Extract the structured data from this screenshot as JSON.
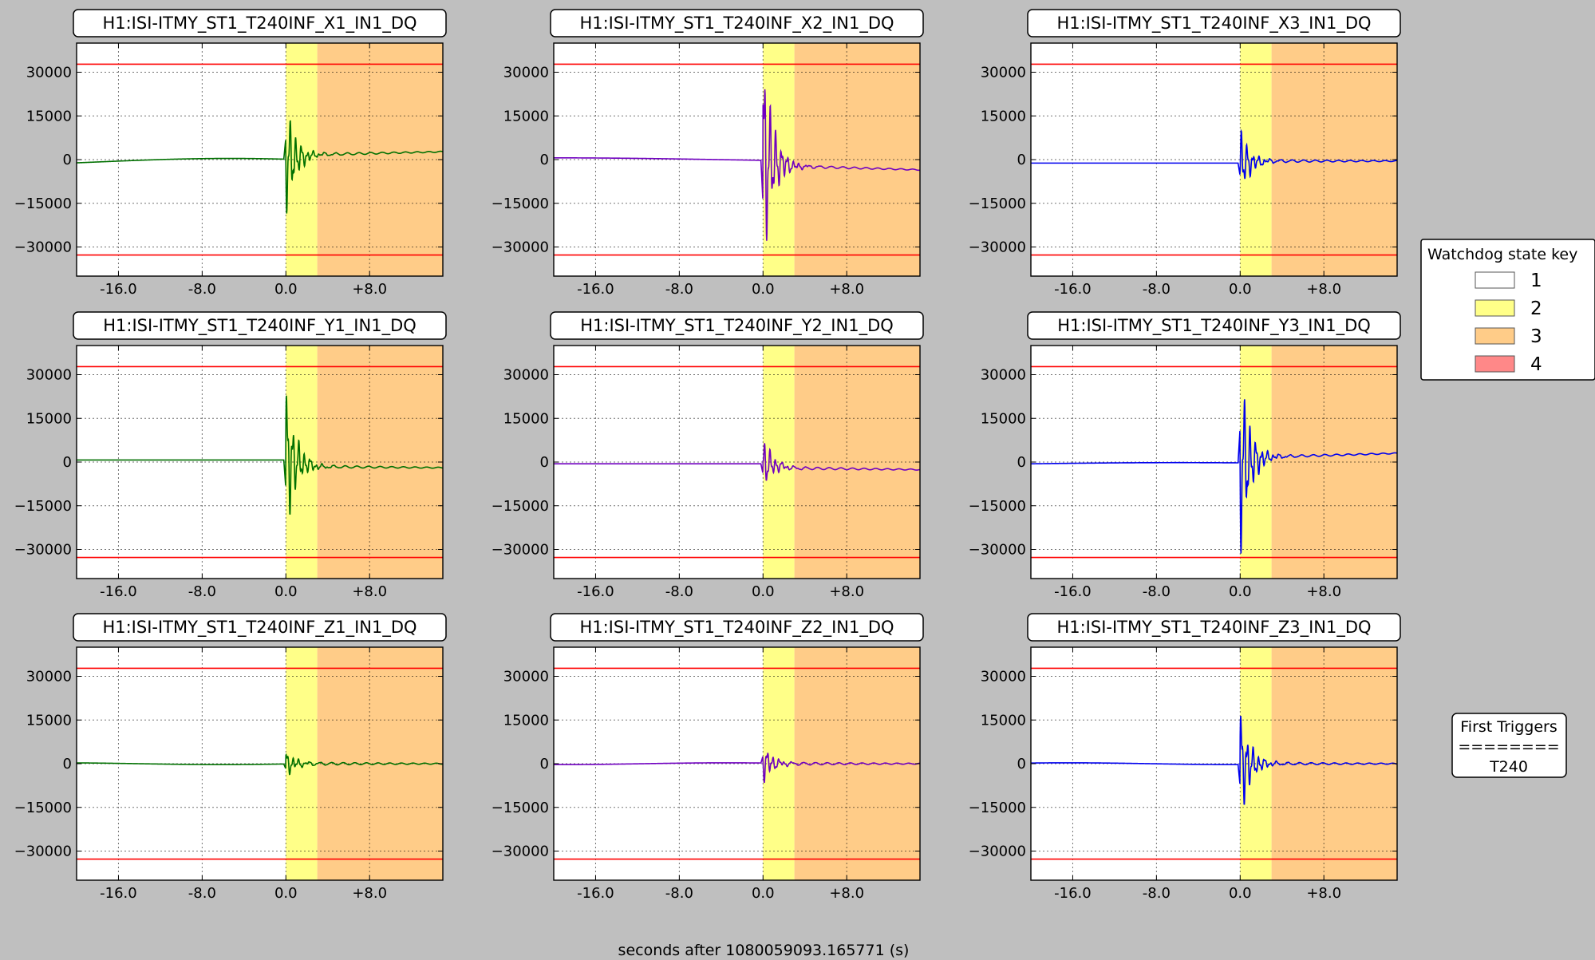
{
  "figure": {
    "xlabel": "seconds after 1080059093.165771 (s)",
    "background": "#bfbfbf"
  },
  "legend": {
    "title": "Watchdog state key",
    "entries": [
      {
        "label": "1",
        "color": "#ffffff"
      },
      {
        "label": "2",
        "color": "#ffff88"
      },
      {
        "label": "3",
        "color": "#ffcc88"
      },
      {
        "label": "4",
        "color": "#ff8888"
      }
    ]
  },
  "first_triggers": {
    "title": "First Triggers",
    "separator": "========",
    "value": "T240"
  },
  "chart_data": [
    {
      "type": "line",
      "title": "H1:ISI-ITMY_ST1_T240INF_X1_IN1_DQ",
      "series_color": "#007000",
      "wave": "X1"
    },
    {
      "type": "line",
      "title": "H1:ISI-ITMY_ST1_T240INF_X2_IN1_DQ",
      "series_color": "#7000c0",
      "wave": "X2"
    },
    {
      "type": "line",
      "title": "H1:ISI-ITMY_ST1_T240INF_X3_IN1_DQ",
      "series_color": "#0000ee",
      "wave": "X3"
    },
    {
      "type": "line",
      "title": "H1:ISI-ITMY_ST1_T240INF_Y1_IN1_DQ",
      "series_color": "#007000",
      "wave": "Y1"
    },
    {
      "type": "line",
      "title": "H1:ISI-ITMY_ST1_T240INF_Y2_IN1_DQ",
      "series_color": "#7000c0",
      "wave": "Y2"
    },
    {
      "type": "line",
      "title": "H1:ISI-ITMY_ST1_T240INF_Y3_IN1_DQ",
      "series_color": "#0000ee",
      "wave": "Y3"
    },
    {
      "type": "line",
      "title": "H1:ISI-ITMY_ST1_T240INF_Z1_IN1_DQ",
      "series_color": "#007000",
      "wave": "Z1"
    },
    {
      "type": "line",
      "title": "H1:ISI-ITMY_ST1_T240INF_Z2_IN1_DQ",
      "series_color": "#7000c0",
      "wave": "Z2"
    },
    {
      "type": "line",
      "title": "H1:ISI-ITMY_ST1_T240INF_Z3_IN1_DQ",
      "series_color": "#0000ee",
      "wave": "Z3"
    }
  ],
  "axes_common": {
    "xlim": [
      -20,
      15
    ],
    "ylim": [
      -40000,
      40000
    ],
    "xticks": [
      -16,
      -8,
      0,
      8
    ],
    "xtick_labels": [
      "-16.0",
      "-8.0",
      "0.0",
      "+8.0"
    ],
    "yticks": [
      30000,
      15000,
      0,
      -15000,
      -30000
    ],
    "ytick_labels": [
      "30000",
      "15000",
      "0",
      "−15000",
      "−30000"
    ],
    "grid": true,
    "thresholds": [
      32768,
      -32768
    ],
    "threshold_color": "#ff0000",
    "state_spans": [
      {
        "state": "2",
        "x0": 0,
        "x1": 3
      },
      {
        "state": "3",
        "x0": 3,
        "x1": 15
      }
    ]
  }
}
